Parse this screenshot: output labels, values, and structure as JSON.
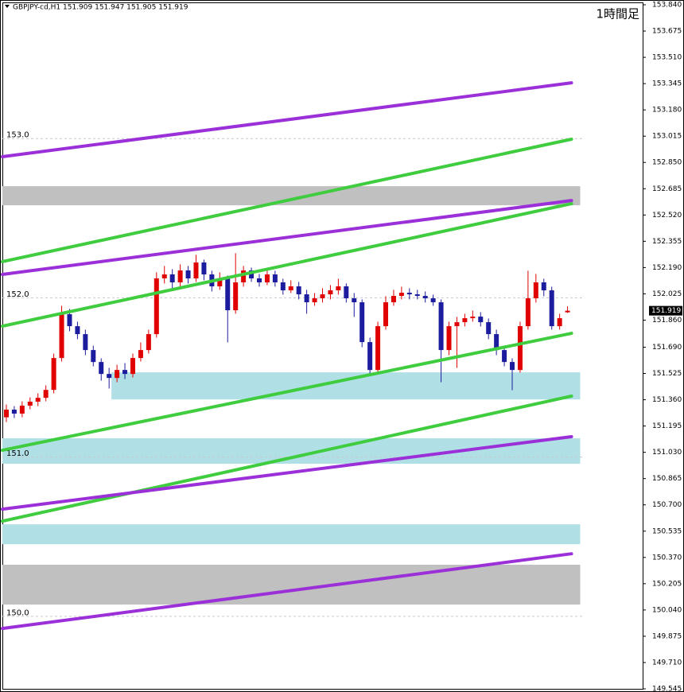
{
  "chart_data": {
    "type": "candlestick",
    "header": "GBPJPY-cd,H1  151.909 151.947 151.905 151.919",
    "title": "1時間足",
    "xlim": [
      -0.5,
      80.5
    ],
    "ylim": [
      149.545,
      153.84
    ],
    "yticks": [
      {
        "value": 153.84,
        "label": "153.840"
      },
      {
        "value": 153.675,
        "label": "153.675"
      },
      {
        "value": 153.51,
        "label": "153.510"
      },
      {
        "value": 153.345,
        "label": "153.345"
      },
      {
        "value": 153.18,
        "label": "153.180"
      },
      {
        "value": 153.015,
        "label": "153.015"
      },
      {
        "value": 152.85,
        "label": "152.850"
      },
      {
        "value": 152.685,
        "label": "152.685"
      },
      {
        "value": 152.52,
        "label": "152.520"
      },
      {
        "value": 152.355,
        "label": "152.355"
      },
      {
        "value": 152.19,
        "label": "152.190"
      },
      {
        "value": 152.025,
        "label": "152.025"
      },
      {
        "value": 151.86,
        "label": "151.860"
      },
      {
        "value": 151.69,
        "label": "151.690"
      },
      {
        "value": 151.525,
        "label": "151.525"
      },
      {
        "value": 151.36,
        "label": "151.360"
      },
      {
        "value": 151.195,
        "label": "151.195"
      },
      {
        "value": 151.03,
        "label": "151.030"
      },
      {
        "value": 150.865,
        "label": "150.865"
      },
      {
        "value": 150.7,
        "label": "150.700"
      },
      {
        "value": 150.535,
        "label": "150.535"
      },
      {
        "value": 150.37,
        "label": "150.370"
      },
      {
        "value": 150.205,
        "label": "150.205"
      },
      {
        "value": 150.04,
        "label": "150.040"
      },
      {
        "value": 149.875,
        "label": "149.875"
      },
      {
        "value": 149.71,
        "label": "149.710"
      },
      {
        "value": 149.545,
        "label": "149.545"
      }
    ],
    "levels": [
      {
        "value": 153.0,
        "label": "153.0"
      },
      {
        "value": 152.0,
        "label": "152.0"
      },
      {
        "value": 151.0,
        "label": "151.0"
      },
      {
        "value": 150.0,
        "label": "150.0"
      }
    ],
    "last_price": {
      "value": 151.919,
      "label": "151.919"
    },
    "up_color": "#e00000",
    "down_color": "#1c1c9e",
    "open": [
      151.25,
      151.298,
      151.273,
      151.323,
      151.348,
      151.372,
      151.422,
      151.622,
      151.897,
      151.822,
      151.772,
      151.672,
      151.597,
      151.522,
      151.497,
      151.547,
      151.522,
      151.622,
      151.672,
      151.772,
      152.122,
      152.147,
      152.097,
      152.172,
      152.122,
      152.222,
      152.147,
      152.072,
      152.122,
      151.922,
      152.097,
      152.172,
      152.122,
      152.097,
      152.147,
      152.097,
      152.047,
      152.072,
      152.022,
      151.972,
      151.997,
      152.022,
      152.047,
      152.072,
      151.997,
      151.972,
      151.722,
      151.547,
      151.822,
      151.972,
      152.012,
      152.032,
      152.022,
      152.012,
      151.997,
      151.972,
      151.672,
      151.822,
      151.847,
      151.872,
      151.882,
      151.847,
      151.772,
      151.672,
      151.597,
      151.547,
      151.822,
      151.997,
      152.097,
      152.047,
      151.822,
      151.909
    ],
    "high": [
      151.33,
      151.32,
      151.35,
      151.375,
      151.4,
      151.45,
      151.65,
      151.95,
      151.93,
      151.85,
      151.8,
      151.7,
      151.62,
      151.56,
      151.58,
      151.59,
      151.65,
      151.72,
      151.8,
      152.16,
      152.2,
      152.18,
      152.21,
      152.2,
      152.27,
      152.24,
      152.17,
      152.16,
      152.14,
      152.28,
      152.2,
      152.19,
      152.15,
      152.18,
      152.17,
      152.12,
      152.11,
      152.1,
      152.05,
      152.03,
      152.06,
      152.08,
      152.12,
      152.09,
      152.03,
      151.99,
      151.75,
      151.85,
      152.01,
      152.05,
      152.07,
      152.06,
      152.05,
      152.04,
      152.02,
      151.99,
      151.85,
      151.88,
      151.9,
      151.92,
      151.91,
      151.87,
      151.8,
      151.7,
      151.62,
      151.85,
      152.17,
      152.15,
      152.12,
      152.07,
      151.9,
      151.947
    ],
    "low": [
      151.22,
      151.245,
      151.25,
      151.3,
      151.32,
      151.35,
      151.4,
      151.6,
      151.79,
      151.74,
      151.64,
      151.57,
      151.48,
      151.43,
      151.47,
      151.49,
      151.5,
      151.6,
      151.65,
      151.75,
      152.09,
      152.06,
      152.07,
      152.09,
      152.1,
      152.11,
      152.04,
      152.05,
      151.72,
      151.9,
      152.07,
      152.1,
      152.07,
      152.08,
      152.07,
      152.02,
      152.03,
      151.99,
      151.9,
      151.95,
      151.97,
      151.99,
      152.02,
      151.97,
      151.88,
      151.69,
      151.51,
      151.53,
      151.8,
      151.95,
      151.99,
      151.99,
      151.99,
      151.97,
      151.95,
      151.47,
      151.64,
      151.56,
      151.82,
      151.85,
      151.82,
      151.74,
      151.64,
      151.57,
      151.42,
      151.53,
      151.8,
      151.97,
      152.01,
      151.8,
      151.8,
      151.905
    ],
    "close": [
      151.298,
      151.273,
      151.323,
      151.348,
      151.372,
      151.422,
      151.622,
      151.897,
      151.822,
      151.772,
      151.672,
      151.597,
      151.522,
      151.497,
      151.547,
      151.522,
      151.622,
      151.672,
      151.772,
      152.122,
      152.147,
      152.097,
      152.172,
      152.122,
      152.222,
      152.147,
      152.072,
      152.122,
      151.922,
      152.097,
      152.172,
      152.122,
      152.097,
      152.147,
      152.097,
      152.047,
      152.072,
      152.022,
      151.972,
      151.997,
      152.022,
      152.047,
      152.072,
      151.997,
      151.972,
      151.722,
      151.547,
      151.822,
      151.972,
      152.012,
      152.032,
      152.022,
      152.012,
      151.997,
      151.972,
      151.672,
      151.822,
      151.847,
      151.872,
      151.882,
      151.847,
      151.772,
      151.672,
      151.597,
      151.547,
      151.822,
      151.997,
      152.097,
      152.047,
      151.822,
      151.872,
      151.919
    ],
    "zones": [
      {
        "color": "#c0c0c0",
        "x": [
          -0.5,
          72.6
        ],
        "y": [
          152.701,
          152.581
        ]
      },
      {
        "color": "#b0e0e6",
        "x": [
          13.3,
          72.6
        ],
        "y": [
          151.532,
          151.362
        ]
      },
      {
        "color": "#b0e0e6",
        "x": [
          -0.5,
          72.6
        ],
        "y": [
          151.118,
          150.958
        ]
      },
      {
        "color": "#b0e0e6",
        "x": [
          -0.5,
          72.6
        ],
        "y": [
          150.578,
          150.453
        ]
      },
      {
        "color": "#c0c0c0",
        "x": [
          -0.5,
          72.6
        ],
        "y": [
          150.324,
          150.074
        ]
      }
    ],
    "lines": [
      {
        "color": "#9b30d9",
        "x": [
          -0.5,
          71.5
        ],
        "values": [
          152.886,
          153.35
        ]
      },
      {
        "color": "#3fcc3f",
        "x": [
          -0.5,
          71.5
        ],
        "values": [
          152.227,
          152.996
        ]
      },
      {
        "color": "#9b30d9",
        "x": [
          -0.5,
          71.5
        ],
        "values": [
          152.147,
          152.611
        ]
      },
      {
        "color": "#3fcc3f",
        "x": [
          -0.5,
          71.5
        ],
        "values": [
          151.822,
          152.591
        ]
      },
      {
        "color": "#3fcc3f",
        "x": [
          -0.5,
          71.5
        ],
        "values": [
          151.043,
          151.777
        ]
      },
      {
        "color": "#3fcc3f",
        "x": [
          -0.5,
          71.5
        ],
        "values": [
          150.598,
          151.383
        ]
      },
      {
        "color": "#9b30d9",
        "x": [
          -0.5,
          71.5
        ],
        "values": [
          150.673,
          151.128
        ]
      },
      {
        "color": "#9b30d9",
        "x": [
          -0.5,
          71.5
        ],
        "values": [
          149.924,
          150.393
        ]
      }
    ]
  }
}
